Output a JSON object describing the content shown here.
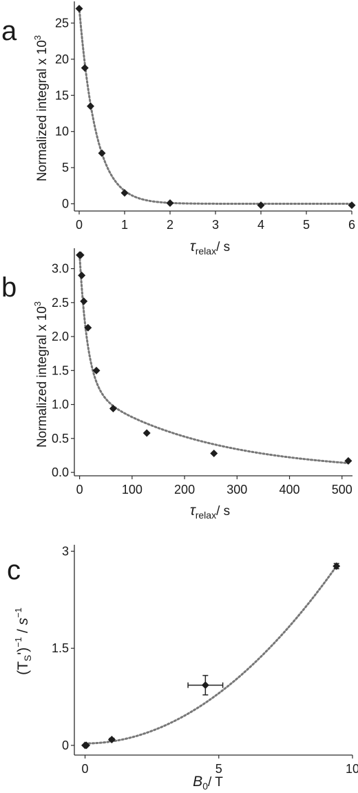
{
  "chart_data": [
    {
      "type": "scatter",
      "panel_label": "a",
      "xlabel_symbol": "τ",
      "xlabel_sub": "relax",
      "xlabel_unit": "/ s",
      "ylabel": "Normalized integral x 10",
      "ylabel_sup": "3",
      "xlim": [
        0,
        6
      ],
      "ylim": [
        -1,
        28
      ],
      "xticks": [
        0,
        1,
        2,
        3,
        4,
        5,
        6
      ],
      "yticks": [
        0,
        5,
        10,
        15,
        20,
        25
      ],
      "xtick_labels": [
        "0",
        "1",
        "2",
        "3",
        "4",
        "5",
        "6"
      ],
      "ytick_labels": [
        "0",
        "5",
        "10",
        "15",
        "20",
        "25"
      ],
      "series": [
        {
          "x": [
            0.0,
            0.125,
            0.25,
            0.5,
            1.0,
            2.0,
            4.0,
            6.0
          ],
          "y": [
            27.0,
            18.8,
            13.5,
            7.0,
            1.5,
            0.1,
            -0.2,
            -0.2
          ]
        }
      ],
      "fit": {
        "model": "exponential",
        "amplitude": 27.2,
        "rate_per_s": 2.72,
        "offset": 0.0
      },
      "grid": false,
      "legend": "none"
    },
    {
      "type": "scatter",
      "panel_label": "b",
      "xlabel_symbol": "τ",
      "xlabel_sub": "relax",
      "xlabel_unit": "/ s",
      "ylabel": "Normalized integral x 10",
      "ylabel_sup": "3",
      "xlim": [
        -10,
        520
      ],
      "ylim": [
        -0.05,
        3.3
      ],
      "xticks": [
        0,
        100,
        200,
        300,
        400,
        500
      ],
      "yticks": [
        0,
        0.5,
        1.0,
        1.5,
        2.0,
        2.5,
        3.0
      ],
      "xtick_labels": [
        "0",
        "100",
        "200",
        "300",
        "400",
        "500"
      ],
      "ytick_labels": [
        "0.0",
        "0.5",
        "1.0",
        "1.5",
        "2.0",
        "2.5",
        "3.0"
      ],
      "series": [
        {
          "x": [
            0,
            2,
            4,
            8,
            16,
            32,
            64,
            128,
            256,
            512
          ],
          "y": [
            3.2,
            3.2,
            2.9,
            2.52,
            2.13,
            1.5,
            0.94,
            0.58,
            0.28,
            0.17
          ]
        }
      ],
      "fit": {
        "model": "biexponential",
        "a1": 1.95,
        "rate1_per_s": 0.065,
        "a2": 1.25,
        "rate2_per_s": 0.00432,
        "offset": 0.0
      },
      "grid": false,
      "legend": "none"
    },
    {
      "type": "scatter",
      "panel_label": "c",
      "xlabel_symbol": "B",
      "xlabel_sub": "0",
      "xlabel_unit": "/ T",
      "ylabel_prefix": "(T",
      "ylabel_sub": "S",
      "ylabel_mid": "')",
      "ylabel_sup1": "−1",
      "ylabel_slash": " / ",
      "ylabel_unit": "s",
      "ylabel_sup2": "−1",
      "xlim": [
        -0.4,
        10
      ],
      "ylim": [
        -0.15,
        3.1
      ],
      "xticks": [
        0,
        5,
        10
      ],
      "yticks": [
        0,
        1.5,
        3
      ],
      "xtick_labels": [
        "0",
        "5",
        "10"
      ],
      "ytick_labels": [
        "0",
        "1.5",
        "3"
      ],
      "series": [
        {
          "x": [
            0.0,
            0.05,
            1.0,
            4.5,
            9.4
          ],
          "y": [
            0.0,
            0.0,
            0.09,
            0.93,
            2.77
          ],
          "x_err": [
            0,
            0,
            0,
            0.65,
            0
          ],
          "y_err": [
            0,
            0,
            0.02,
            0.15,
            0.04
          ]
        }
      ],
      "fit": {
        "model": "quadratic",
        "c0": 0.03,
        "c2": 0.031
      },
      "grid": false,
      "legend": "none"
    }
  ]
}
